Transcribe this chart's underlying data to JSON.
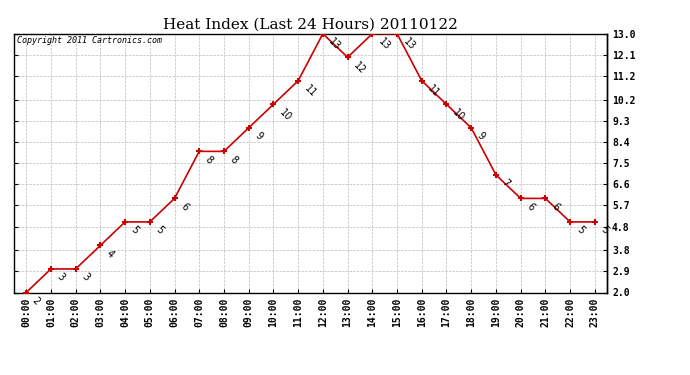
{
  "title": "Heat Index (Last 24 Hours) 20110122",
  "copyright": "Copyright 2011 Cartronics.com",
  "hours": [
    "00:00",
    "01:00",
    "02:00",
    "03:00",
    "04:00",
    "05:00",
    "06:00",
    "07:00",
    "08:00",
    "09:00",
    "10:00",
    "11:00",
    "12:00",
    "13:00",
    "14:00",
    "15:00",
    "16:00",
    "17:00",
    "18:00",
    "19:00",
    "20:00",
    "21:00",
    "22:00",
    "23:00"
  ],
  "values": [
    2,
    3,
    3,
    4,
    5,
    5,
    6,
    8,
    8,
    9,
    10,
    11,
    13,
    12,
    13,
    13,
    11,
    10,
    9,
    7,
    6,
    6,
    5,
    5
  ],
  "line_color": "#cc0000",
  "marker_color": "#cc0000",
  "bg_color": "#ffffff",
  "grid_color": "#bbbbbb",
  "ylim_min": 2.0,
  "ylim_max": 13.0,
  "yticks": [
    2.0,
    2.9,
    3.8,
    4.8,
    5.7,
    6.6,
    7.5,
    8.4,
    9.3,
    10.2,
    11.2,
    12.1,
    13.0
  ],
  "ytick_labels": [
    "2.0",
    "2.9",
    "3.8",
    "4.8",
    "5.7",
    "6.6",
    "7.5",
    "8.4",
    "9.3",
    "10.2",
    "11.2",
    "12.1",
    "13.0"
  ],
  "title_fontsize": 11,
  "label_fontsize": 7,
  "annotation_fontsize": 7,
  "copyright_fontsize": 6
}
